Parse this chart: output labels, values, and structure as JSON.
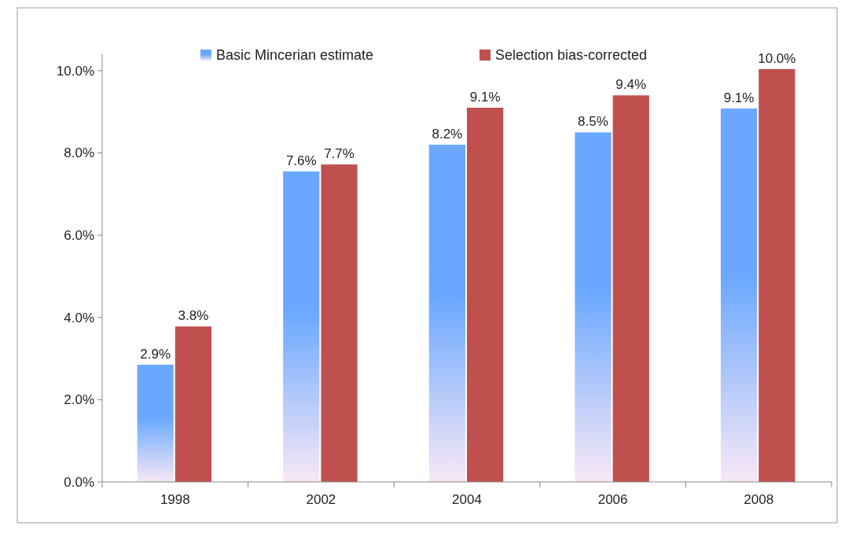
{
  "chart_data": {
    "type": "bar",
    "categories": [
      "1998",
      "2002",
      "2004",
      "2006",
      "2008"
    ],
    "series": [
      {
        "name": "Basic Mincerian estimate",
        "color": "#6aa8ff",
        "values": [
          2.85,
          7.55,
          8.2,
          8.5,
          9.08
        ],
        "value_labels": [
          "2.9%",
          "7.6%",
          "8.2%",
          "8.5%",
          "9.1%"
        ]
      },
      {
        "name": "Selection bias-corrected",
        "color": "#c0504d",
        "values": [
          3.78,
          7.72,
          9.1,
          9.4,
          10.04
        ],
        "value_labels": [
          "3.8%",
          "7.7%",
          "9.1%",
          "9.4%",
          "10.0%"
        ]
      }
    ],
    "ylim": [
      0,
      10.4
    ],
    "yticks": [
      {
        "value": 0,
        "label": "0.0%"
      },
      {
        "value": 2,
        "label": "2.0%"
      },
      {
        "value": 4,
        "label": "4.0%"
      },
      {
        "value": 6,
        "label": "6.0%"
      },
      {
        "value": 8,
        "label": "8.0%"
      },
      {
        "value": 10,
        "label": "10.0%"
      }
    ],
    "legend": "top"
  }
}
